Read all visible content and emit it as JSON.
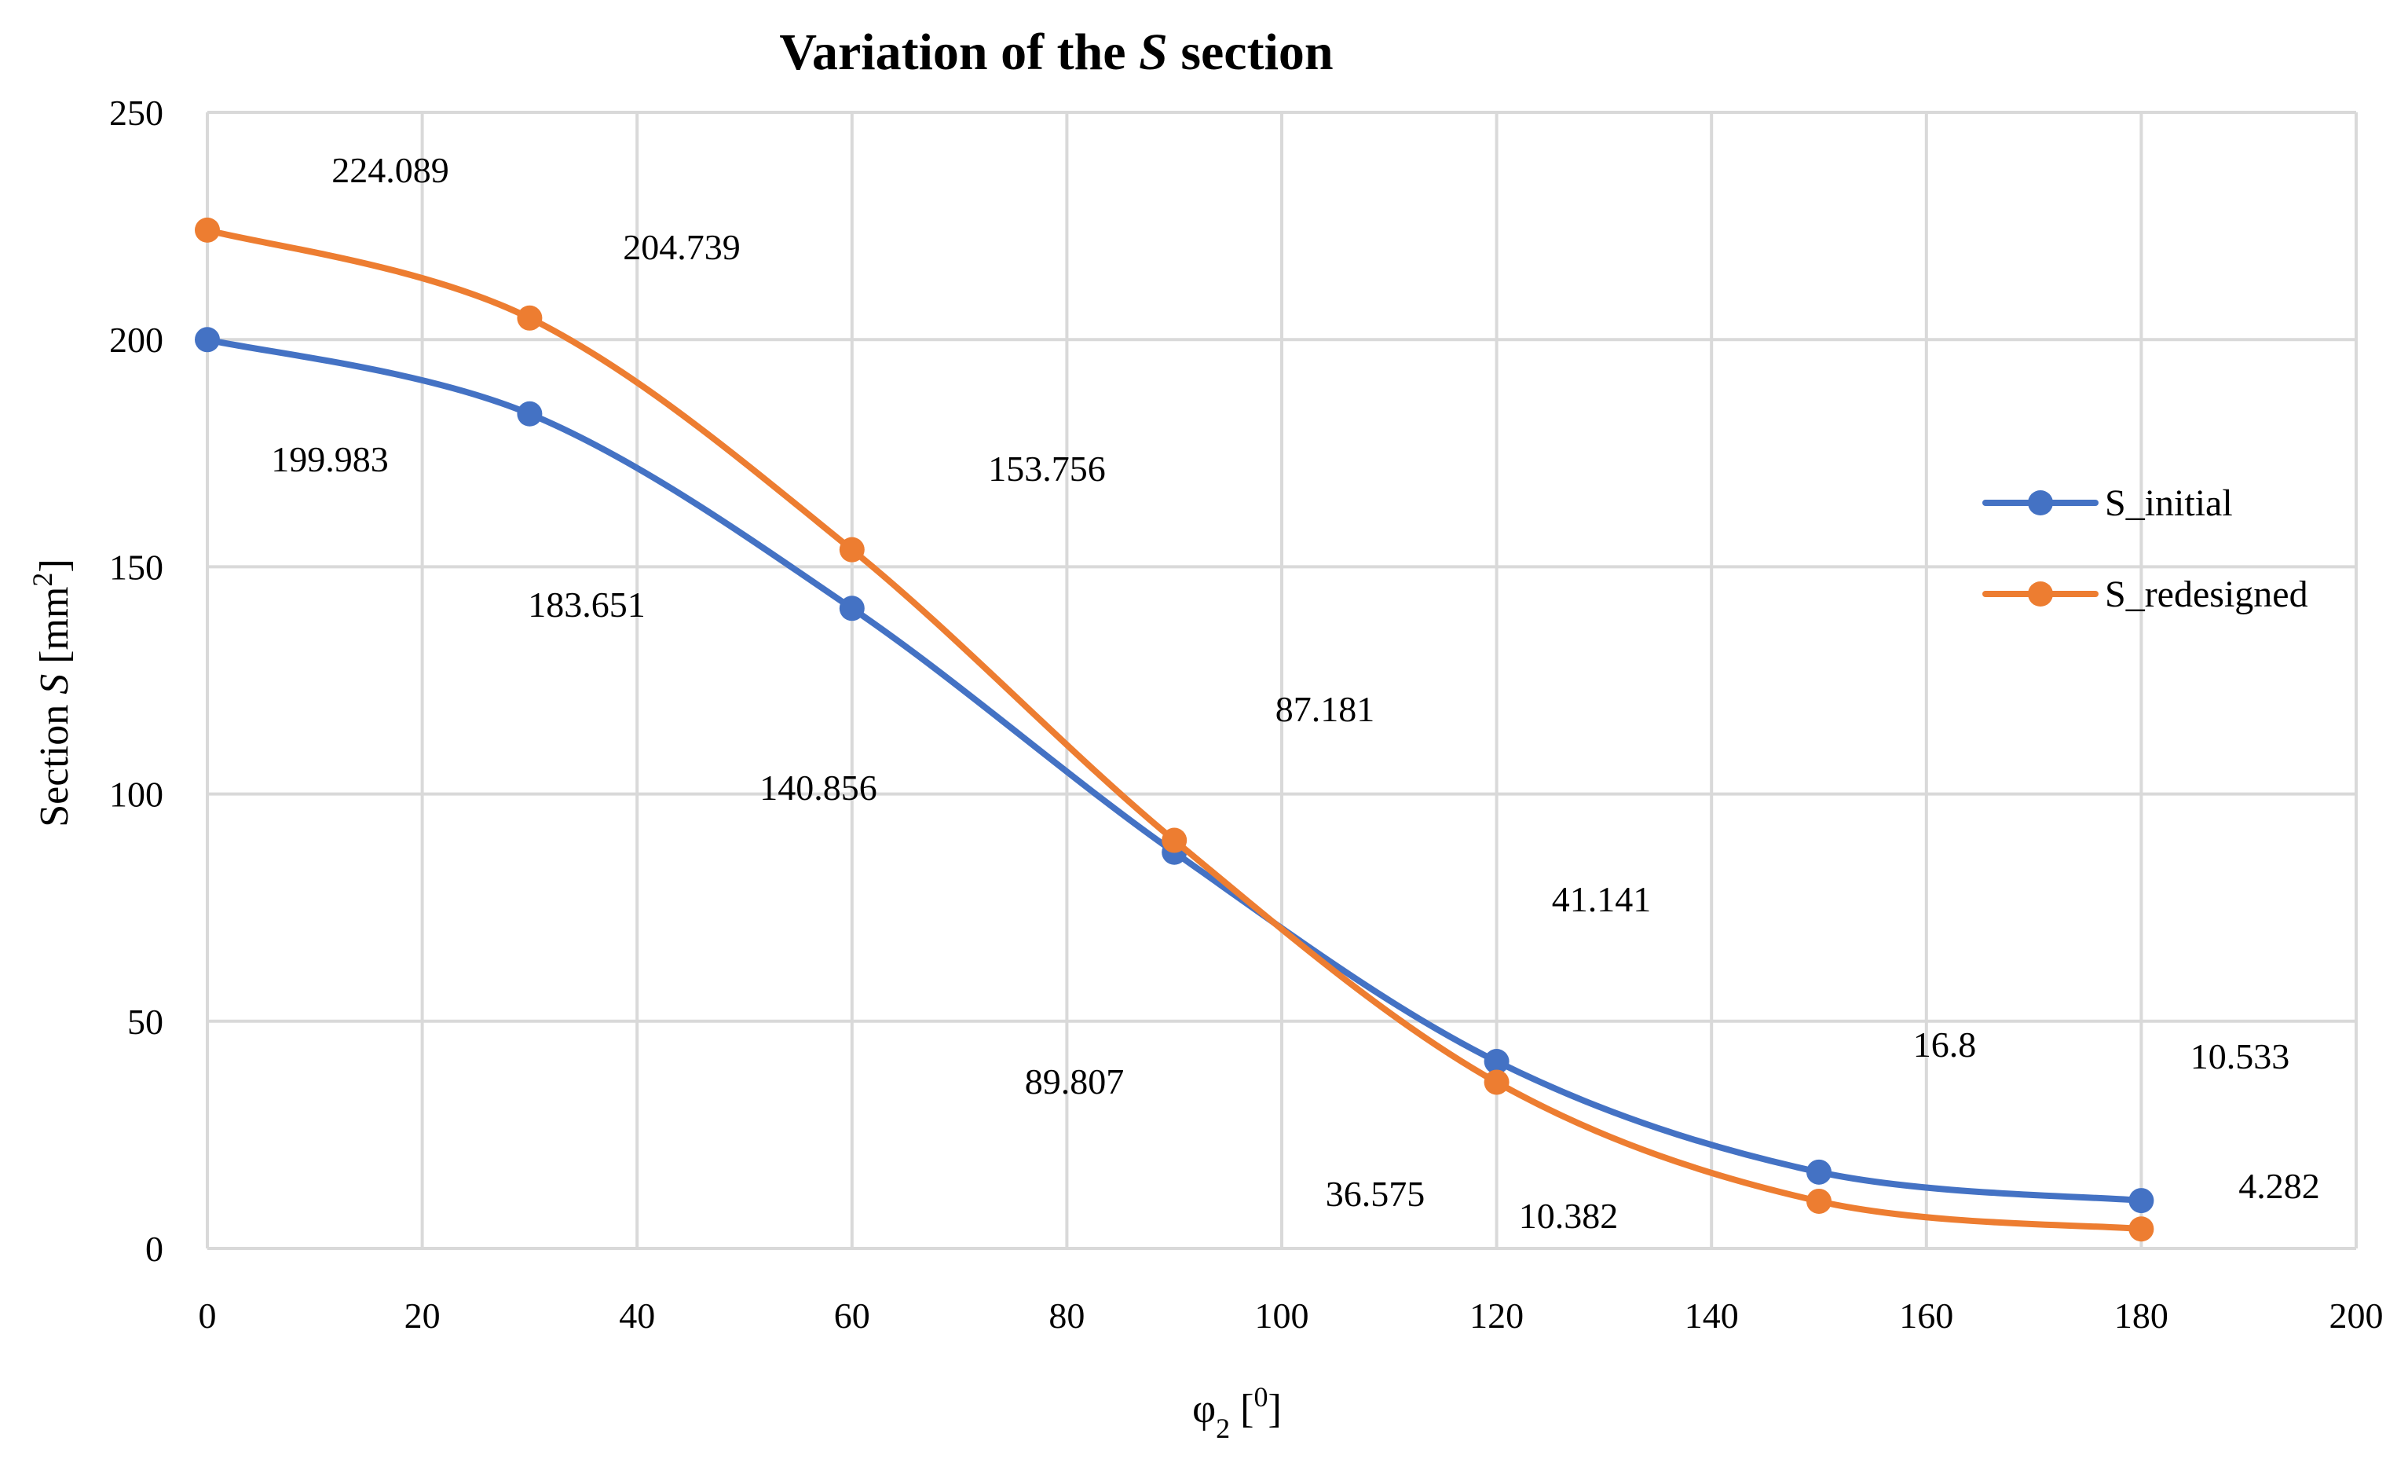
{
  "chart_data": {
    "type": "line",
    "title_prefix": "Variation of the ",
    "title_var": "S",
    "title_suffix": " section",
    "xlabel_base": "φ",
    "xlabel_sub": "2",
    "xlabel_rest": " [",
    "xlabel_sup": "0",
    "xlabel_end": "]",
    "ylabel_prefix": "Section ",
    "ylabel_var": "S",
    "ylabel_mid": " [mm",
    "ylabel_sup": "2",
    "ylabel_end": "]",
    "xlim": [
      0,
      200
    ],
    "ylim": [
      0,
      250
    ],
    "x_ticks": [
      "0",
      "20",
      "40",
      "60",
      "80",
      "100",
      "120",
      "140",
      "160",
      "180",
      "200"
    ],
    "y_ticks": [
      "0",
      "50",
      "100",
      "150",
      "200",
      "250"
    ],
    "grid": true,
    "legend_position": "right",
    "series": [
      {
        "name": "S_initial",
        "color": "#4472c4",
        "x": [
          0,
          30,
          60,
          90,
          120,
          150,
          180
        ],
        "values": [
          199.983,
          183.651,
          140.856,
          87.181,
          41.141,
          16.8,
          10.533
        ],
        "labels": [
          "199.983",
          "183.651",
          "140.856",
          "87.181",
          "41.141",
          "16.8",
          "10.533"
        ]
      },
      {
        "name": "S_redesigned",
        "color": "#ed7d31",
        "x": [
          0,
          30,
          60,
          90,
          120,
          150,
          180
        ],
        "values": [
          224.089,
          204.739,
          153.756,
          89.807,
          36.575,
          10.382,
          4.282
        ],
        "labels": [
          "224.089",
          "204.739",
          "153.756",
          "89.807",
          "36.575",
          "10.382",
          "4.282"
        ]
      }
    ]
  }
}
